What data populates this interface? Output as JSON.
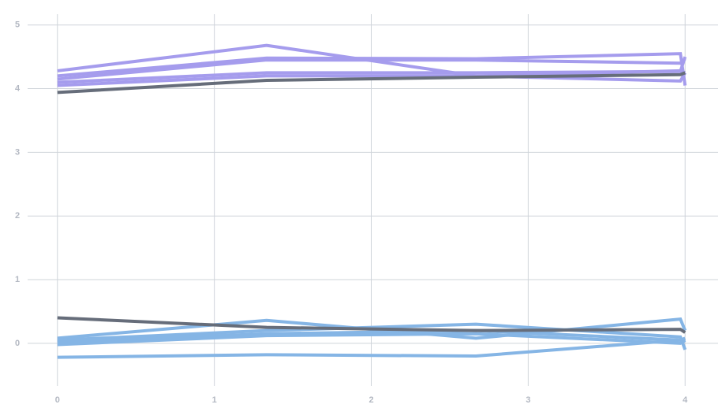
{
  "chart_data": {
    "type": "line",
    "x": [
      0,
      1.333,
      2.667,
      3.97,
      4
    ],
    "series": [
      {
        "color": "#a59ced",
        "values": [
          4.28,
          4.68,
          4.2,
          4.28,
          4.25
        ]
      },
      {
        "color": "#a59ced",
        "values": [
          4.2,
          4.48,
          4.47,
          4.55,
          4.05
        ]
      },
      {
        "color": "#a59ced",
        "values": [
          4.15,
          4.45,
          4.45,
          4.4,
          4.47
        ]
      },
      {
        "color": "#a59ced",
        "values": [
          4.1,
          4.25,
          4.25,
          4.27,
          4.5
        ]
      },
      {
        "color": "#a59ced",
        "values": [
          4.05,
          4.2,
          4.2,
          4.12,
          4.25
        ]
      },
      {
        "color": "#85b5e5",
        "values": [
          0.08,
          0.36,
          0.08,
          0.38,
          0.2
        ]
      },
      {
        "color": "#85b5e5",
        "values": [
          0.05,
          0.2,
          0.3,
          0.1,
          -0.1
        ]
      },
      {
        "color": "#85b5e5",
        "values": [
          0.02,
          0.15,
          0.2,
          0.05,
          0.08
        ]
      },
      {
        "color": "#85b5e5",
        "values": [
          -0.02,
          0.12,
          0.15,
          0.0,
          0.05
        ]
      },
      {
        "color": "#85b5e5",
        "values": [
          -0.22,
          -0.18,
          -0.2,
          0.05,
          0.03
        ]
      },
      {
        "color": "#666d7a",
        "values": [
          3.94,
          4.13,
          4.18,
          4.22,
          4.25
        ]
      },
      {
        "color": "#666d7a",
        "values": [
          0.4,
          0.25,
          0.2,
          0.22,
          0.17
        ]
      }
    ],
    "xlim": [
      -0.19,
      4.21
    ],
    "ylim": [
      -0.67,
      5.17
    ],
    "xticks": [
      0,
      1,
      2,
      3,
      4
    ],
    "yticks": [
      0,
      1,
      2,
      3,
      4,
      5
    ],
    "grid": true
  }
}
